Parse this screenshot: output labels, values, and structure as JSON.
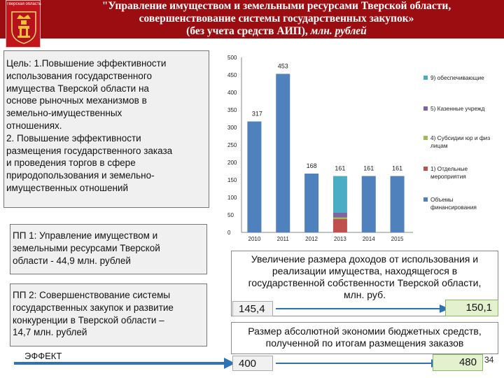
{
  "header": {
    "emblem_caption": "Тверская область",
    "title_line1": "\"Управление имуществом и земельными ресурсами Тверской области,",
    "title_line2": "совершенствование системы государственных закупок»",
    "title_line3": "(без учета средств АИП),",
    "title_unit": "млн. рублей"
  },
  "goal": {
    "label": "Цель:",
    "line1": " 1.Повышение эффективности",
    "line2": "использования государственного",
    "line3": "имущества  Тверской области на",
    "line4": "основе рыночных механизмов в",
    "line5": "земельно-имущественных",
    "line6": "отношениях.",
    "line7": "2. Повышение эффективности",
    "line8": "размещения государственного заказа",
    "line9": "и проведения торгов в сфере",
    "line10": "природопользования и земельно-",
    "line11": "имущественных отношений"
  },
  "pp1": {
    "line1": "ПП 1: Управление имуществом и",
    "line2": "земельными ресурсами Тверской",
    "line3": "области - 44,9 млн. рублей"
  },
  "pp2": {
    "line1": "ПП 2: Совершенствование системы",
    "line2": "государственных закупок и развитие",
    "line3": "конкуренции в Тверской области –",
    "line4": "14,7 млн. рублей"
  },
  "effect_label": "ЭФФЕКТ",
  "income": {
    "line1": "Увеличение размера доходов от использования и",
    "line2": "реализации имущества, находящегося в",
    "line3": "государственной собственности Тверской области,",
    "line4": "млн. руб.",
    "from": "145,4",
    "to": "150,1"
  },
  "savings": {
    "line1": "Размер абсолютной экономии бюджетных средств,",
    "line2": "полученной по итогам размещения заказов",
    "from": "400",
    "to": "480"
  },
  "page_number": "34",
  "chart_data": {
    "type": "bar",
    "stacked": true,
    "categories": [
      "2010",
      "2011",
      "2012",
      "2013",
      "2014",
      "2015"
    ],
    "totals_labels": [
      "317",
      "453",
      "168",
      "161",
      "161",
      "161"
    ],
    "ylim": [
      0,
      500
    ],
    "yticks": [
      0,
      50,
      100,
      150,
      200,
      250,
      300,
      350,
      400,
      450,
      500
    ],
    "grid": false,
    "legend_position": "right",
    "series": [
      {
        "name": "Объемы финансирования",
        "legend_lines": [
          "Объемы",
          "финансирования"
        ],
        "color": "#4f81bd",
        "values": [
          317,
          453,
          168,
          0,
          161,
          161
        ]
      },
      {
        "name": "1) Отдельные мероприятия",
        "legend_lines": [
          "1) Отдельные",
          "мероприятия"
        ],
        "color": "#c0504d",
        "values": [
          0,
          0,
          0,
          38,
          0,
          0
        ]
      },
      {
        "name": "4) Субсидии юр и физ лицам",
        "legend_lines": [
          "4) Субсидии юр и физ",
          "лицам"
        ],
        "color": "#9bbb59",
        "values": [
          0,
          0,
          0,
          5,
          0,
          0
        ]
      },
      {
        "name": "5) Казенные учрежд",
        "legend_lines": [
          "5) Казенные учрежд"
        ],
        "color": "#8064a2",
        "values": [
          0,
          0,
          0,
          13,
          0,
          0
        ]
      },
      {
        "name": "9) обеспечивающие",
        "legend_lines": [
          "9) обеспечивающие"
        ],
        "color": "#4bacc6",
        "values": [
          0,
          0,
          0,
          105,
          0,
          0
        ]
      }
    ]
  },
  "colors": {
    "banner": "#9c0d12",
    "emblem": "#c2151b",
    "arrow": "#2e74b5",
    "green_box": "#e3f1cf"
  }
}
